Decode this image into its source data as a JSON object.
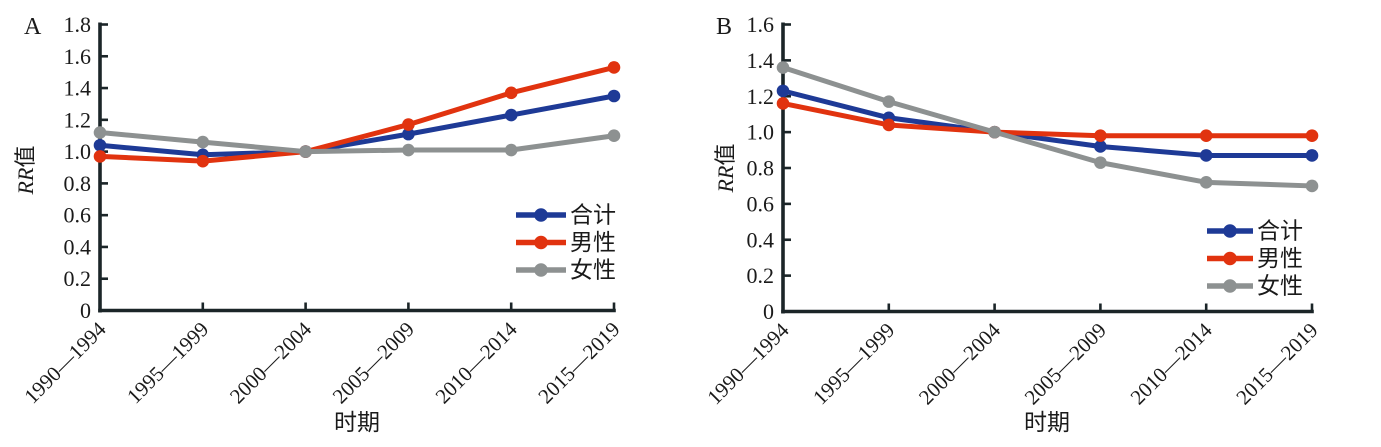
{
  "figure": {
    "background": "#ffffff",
    "text_color": "#1a1a1a",
    "axis_color": "#1b2528"
  },
  "chart_data": [
    {
      "type": "line",
      "panel_label": "A",
      "title": "",
      "xlabel": "时期",
      "ylabel": "RR值",
      "ylabel_italic": "RR",
      "ylabel_cjk": "值",
      "ylim": [
        0,
        1.8
      ],
      "ytick_step": 0.2,
      "grid": false,
      "legend_position": "inside-right-middle",
      "categories": [
        "1990—1994",
        "1995—1999",
        "2000—2004",
        "2005—2009",
        "2010—2014",
        "2015—2019"
      ],
      "series": [
        {
          "key": "total",
          "name": "合计",
          "color": "#1e3a96",
          "values": [
            1.04,
            0.98,
            1.0,
            1.11,
            1.23,
            1.35
          ]
        },
        {
          "key": "male",
          "name": "男性",
          "color": "#e1330f",
          "values": [
            0.97,
            0.94,
            1.0,
            1.17,
            1.37,
            1.53
          ]
        },
        {
          "key": "female",
          "name": "女性",
          "color": "#8d9191",
          "values": [
            1.12,
            1.06,
            1.0,
            1.01,
            1.01,
            1.1
          ]
        }
      ]
    },
    {
      "type": "line",
      "panel_label": "B",
      "title": "",
      "xlabel": "时期",
      "ylabel": "RR值",
      "ylabel_italic": "RR",
      "ylabel_cjk": "值",
      "ylim": [
        0,
        1.6
      ],
      "ytick_step": 0.2,
      "grid": false,
      "legend_position": "inside-right-lower",
      "categories": [
        "1990—1994",
        "1995—1999",
        "2000—2004",
        "2005—2009",
        "2010—2014",
        "2015—2019"
      ],
      "series": [
        {
          "key": "total",
          "name": "合计",
          "color": "#1e3a96",
          "values": [
            1.23,
            1.08,
            1.0,
            0.92,
            0.87,
            0.87
          ]
        },
        {
          "key": "male",
          "name": "男性",
          "color": "#e1330f",
          "values": [
            1.16,
            1.04,
            1.0,
            0.98,
            0.98,
            0.98
          ]
        },
        {
          "key": "female",
          "name": "女性",
          "color": "#8d9191",
          "values": [
            1.36,
            1.17,
            1.0,
            0.83,
            0.72,
            0.7
          ]
        }
      ]
    }
  ]
}
